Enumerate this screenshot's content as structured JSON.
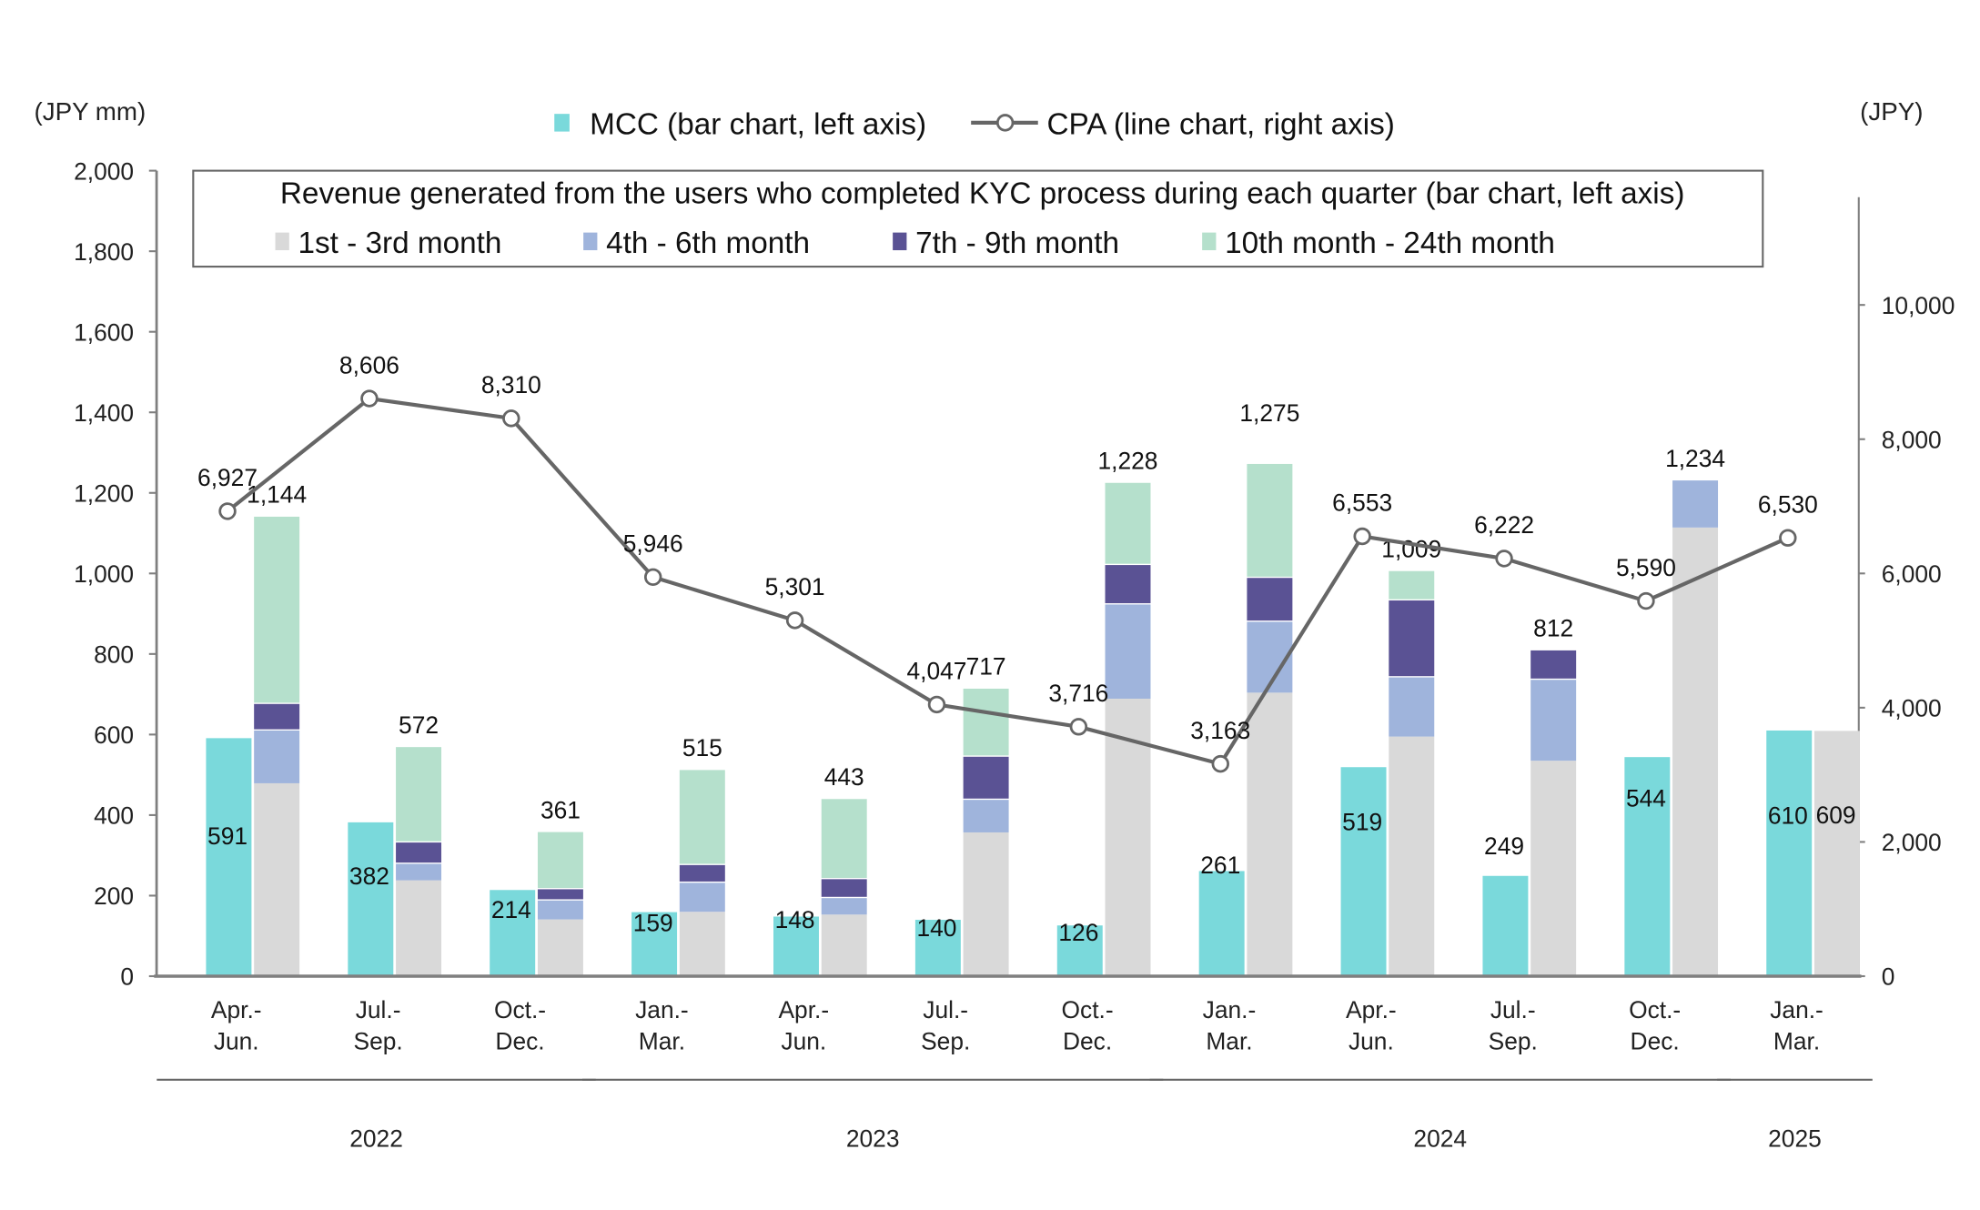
{
  "chart_data": {
    "type": "bar+line",
    "left_axis_unit": "(JPY mm)",
    "right_axis_unit": "(JPY)",
    "categories": [
      [
        "Apr.-",
        "Jun."
      ],
      [
        "Jul.-",
        "Sep."
      ],
      [
        "Oct.-",
        "Dec."
      ],
      [
        "Jan.-",
        "Mar."
      ],
      [
        "Apr.-",
        "Jun."
      ],
      [
        "Jul.-",
        "Sep."
      ],
      [
        "Oct.-",
        "Dec."
      ],
      [
        "Jan.-",
        "Mar."
      ],
      [
        "Apr.-",
        "Jun."
      ],
      [
        "Jul.-",
        "Sep."
      ],
      [
        "Oct.-",
        "Dec."
      ],
      [
        "Jan.-",
        "Mar."
      ]
    ],
    "years": [
      {
        "label": "2022",
        "from": 0,
        "to": 2
      },
      {
        "label": "2023",
        "from": 3,
        "to": 6
      },
      {
        "label": "2024",
        "from": 7,
        "to": 10
      },
      {
        "label": "2025",
        "from": 11,
        "to": 11
      }
    ],
    "left_axis": {
      "min": 0,
      "max": 2000,
      "ticks": [
        0,
        200,
        400,
        600,
        800,
        1000,
        1200,
        1400,
        1600,
        1800,
        2000
      ]
    },
    "right_axis": {
      "min": 0,
      "max": 12000,
      "ticks": [
        0,
        2000,
        4000,
        6000,
        8000,
        10000
      ]
    },
    "mcc": {
      "name": "MCC (bar chart, left axis)",
      "color": "#7ad9db",
      "values": [
        591,
        382,
        214,
        159,
        148,
        140,
        126,
        261,
        519,
        249,
        544,
        610
      ]
    },
    "stack_legend_title": "Revenue generated from the users who completed KYC process during each quarter (bar chart, left axis)",
    "stack_series": [
      {
        "name": "1st - 3rd month",
        "color": "#d9d9d9",
        "values": [
          479,
          238,
          141,
          160,
          153,
          357,
          689,
          704,
          595,
          535,
          1114,
          609
        ]
      },
      {
        "name": "4th - 6th month",
        "color": "#9fb4dc",
        "values": [
          134,
          44,
          50,
          75,
          44,
          84,
          237,
          179,
          150,
          204,
          120,
          0
        ]
      },
      {
        "name": "7th - 9th month",
        "color": "#5a5294",
        "values": [
          66,
          53,
          28,
          44,
          47,
          107,
          98,
          109,
          191,
          73,
          0,
          0
        ]
      },
      {
        "name": "10th month - 24th month",
        "color": "#b5e0cc",
        "values": [
          465,
          237,
          142,
          236,
          199,
          169,
          204,
          283,
          73,
          0,
          0,
          0
        ]
      }
    ],
    "stack_totals": [
      1144,
      572,
      361,
      515,
      443,
      717,
      1228,
      1275,
      1009,
      812,
      1234,
      609
    ],
    "cpa": {
      "name": "CPA (line chart, right axis)",
      "color": "#666666",
      "values": [
        6927,
        8606,
        8310,
        5946,
        5301,
        4047,
        3716,
        3163,
        6553,
        6222,
        5590,
        6530
      ]
    }
  }
}
